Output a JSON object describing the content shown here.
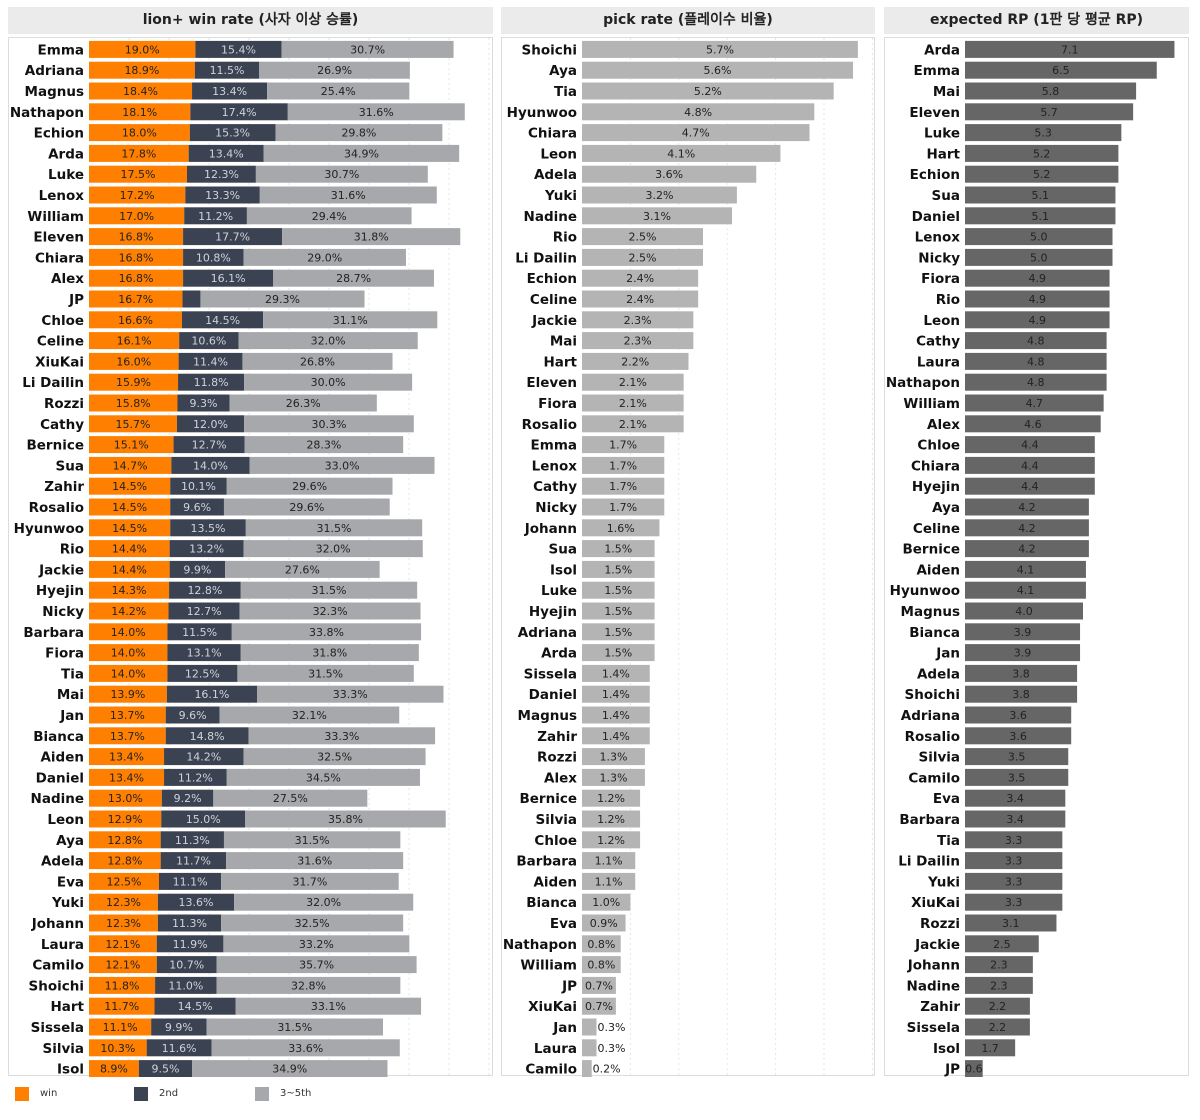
{
  "colors": {
    "win": "#ff8000",
    "second": "#3b4252",
    "third_to_fifth": "#a6a8ab",
    "pick": "#b4b4b4",
    "rp": "#666666",
    "header_bg": "#ebebeb"
  },
  "chart_data": [
    {
      "type": "bar",
      "stacked": true,
      "orientation": "horizontal",
      "title": "lion+ win rate (사자 이상 승률)",
      "categories": [
        "Emma",
        "Adriana",
        "Magnus",
        "Nathapon",
        "Echion",
        "Arda",
        "Luke",
        "Lenox",
        "William",
        "Eleven",
        "Chiara",
        "Alex",
        "JP",
        "Chloe",
        "Celine",
        "XiuKai",
        "Li Dailin",
        "Rozzi",
        "Cathy",
        "Bernice",
        "Sua",
        "Zahir",
        "Rosalio",
        "Hyunwoo",
        "Rio",
        "Jackie",
        "Hyejin",
        "Nicky",
        "Barbara",
        "Fiora",
        "Tia",
        "Mai",
        "Jan",
        "Bianca",
        "Aiden",
        "Daniel",
        "Nadine",
        "Leon",
        "Aya",
        "Adela",
        "Eva",
        "Yuki",
        "Johann",
        "Laura",
        "Camilo",
        "Shoichi",
        "Hart",
        "Sissela",
        "Silvia",
        "Isol"
      ],
      "series": [
        {
          "name": "win",
          "values": [
            19.0,
            18.9,
            18.4,
            18.1,
            18.0,
            17.8,
            17.5,
            17.2,
            17.0,
            16.8,
            16.8,
            16.8,
            16.7,
            16.6,
            16.1,
            16.0,
            15.9,
            15.8,
            15.7,
            15.1,
            14.7,
            14.5,
            14.5,
            14.5,
            14.4,
            14.4,
            14.3,
            14.2,
            14.0,
            14.0,
            14.0,
            13.9,
            13.7,
            13.7,
            13.4,
            13.4,
            13.0,
            12.9,
            12.8,
            12.8,
            12.5,
            12.3,
            12.3,
            12.1,
            12.1,
            11.8,
            11.7,
            11.1,
            10.3,
            8.9
          ]
        },
        {
          "name": "2nd",
          "values": [
            15.4,
            11.5,
            13.4,
            17.4,
            15.3,
            13.4,
            12.3,
            13.3,
            11.2,
            17.7,
            10.8,
            16.1,
            3.2,
            14.5,
            10.6,
            11.4,
            11.8,
            9.3,
            12.0,
            12.7,
            14.0,
            10.1,
            9.6,
            13.5,
            13.2,
            9.9,
            12.8,
            12.7,
            11.5,
            13.1,
            12.5,
            16.1,
            9.6,
            14.8,
            14.2,
            11.2,
            9.2,
            15.0,
            11.3,
            11.7,
            11.1,
            13.6,
            11.3,
            11.9,
            10.7,
            11.0,
            14.5,
            9.9,
            11.6,
            9.5
          ]
        },
        {
          "name": "3~5th",
          "values": [
            30.7,
            26.9,
            25.4,
            31.6,
            29.8,
            34.9,
            30.7,
            31.6,
            29.4,
            31.8,
            29.0,
            28.7,
            29.3,
            31.1,
            32.0,
            26.8,
            30.0,
            26.3,
            30.3,
            28.3,
            33.0,
            29.6,
            29.6,
            31.5,
            32.0,
            27.6,
            31.5,
            32.3,
            33.8,
            31.8,
            31.5,
            33.3,
            32.1,
            33.3,
            32.5,
            34.5,
            27.5,
            35.8,
            31.5,
            31.6,
            31.7,
            32.0,
            32.5,
            33.2,
            35.7,
            32.8,
            33.1,
            31.5,
            33.6,
            34.9
          ]
        }
      ],
      "value_labels": [
        [
          "19.0%",
          "15.4%",
          "30.7%"
        ],
        [
          "18.9%",
          "11.5%",
          "26.9%"
        ],
        [
          "18.4%",
          "13.4%",
          "25.4%"
        ],
        [
          "18.1%",
          "17.4%",
          "31.6%"
        ],
        [
          "18.0%",
          "15.3%",
          "29.8%"
        ],
        [
          "17.8%",
          "13.4%",
          "34.9%"
        ],
        [
          "17.5%",
          "12.3%",
          "30.7%"
        ],
        [
          "17.2%",
          "13.3%",
          "31.6%"
        ],
        [
          "17.0%",
          "11.2%",
          "29.4%"
        ],
        [
          "16.8%",
          "17.7%",
          "31.8%"
        ],
        [
          "16.8%",
          "10.8%",
          "29.0%"
        ],
        [
          "16.8%",
          "16.1%",
          "28.7%"
        ],
        [
          "16.7%",
          "",
          "29.3%"
        ],
        [
          "16.6%",
          "14.5%",
          "31.1%"
        ],
        [
          "16.1%",
          "10.6%",
          "32.0%"
        ],
        [
          "16.0%",
          "11.4%",
          "26.8%"
        ],
        [
          "15.9%",
          "11.8%",
          "30.0%"
        ],
        [
          "15.8%",
          "9.3%",
          "26.3%"
        ],
        [
          "15.7%",
          "12.0%",
          "30.3%"
        ],
        [
          "15.1%",
          "12.7%",
          "28.3%"
        ],
        [
          "14.7%",
          "14.0%",
          "33.0%"
        ],
        [
          "14.5%",
          "10.1%",
          "29.6%"
        ],
        [
          "14.5%",
          "9.6%",
          "29.6%"
        ],
        [
          "14.5%",
          "13.5%",
          "31.5%"
        ],
        [
          "14.4%",
          "13.2%",
          "32.0%"
        ],
        [
          "14.4%",
          "9.9%",
          "27.6%"
        ],
        [
          "14.3%",
          "12.8%",
          "31.5%"
        ],
        [
          "14.2%",
          "12.7%",
          "32.3%"
        ],
        [
          "14.0%",
          "11.5%",
          "33.8%"
        ],
        [
          "14.0%",
          "13.1%",
          "31.8%"
        ],
        [
          "14.0%",
          "12.5%",
          "31.5%"
        ],
        [
          "13.9%",
          "16.1%",
          "33.3%"
        ],
        [
          "13.7%",
          "9.6%",
          "32.1%"
        ],
        [
          "13.7%",
          "14.8%",
          "33.3%"
        ],
        [
          "13.4%",
          "14.2%",
          "32.5%"
        ],
        [
          "13.4%",
          "11.2%",
          "34.5%"
        ],
        [
          "13.0%",
          "9.2%",
          "27.5%"
        ],
        [
          "12.9%",
          "15.0%",
          "35.8%"
        ],
        [
          "12.8%",
          "11.3%",
          "31.5%"
        ],
        [
          "12.8%",
          "11.7%",
          "31.6%"
        ],
        [
          "12.5%",
          "11.1%",
          "31.7%"
        ],
        [
          "12.3%",
          "13.6%",
          "32.0%"
        ],
        [
          "12.3%",
          "11.3%",
          "32.5%"
        ],
        [
          "12.1%",
          "11.9%",
          "33.2%"
        ],
        [
          "12.1%",
          "10.7%",
          "35.7%"
        ],
        [
          "11.8%",
          "11.0%",
          "32.8%"
        ],
        [
          "11.7%",
          "14.5%",
          "33.1%"
        ],
        [
          "11.1%",
          "9.9%",
          "31.5%"
        ],
        [
          "10.3%",
          "11.6%",
          "33.6%"
        ],
        [
          "8.9%",
          "9.5%",
          "34.9%"
        ]
      ],
      "xlim": [
        0,
        75
      ],
      "grid": true
    },
    {
      "type": "bar",
      "orientation": "horizontal",
      "title": "pick rate (플레이수 비율)",
      "categories": [
        "Shoichi",
        "Aya",
        "Tia",
        "Hyunwoo",
        "Chiara",
        "Leon",
        "Adela",
        "Yuki",
        "Nadine",
        "Rio",
        "Li Dailin",
        "Echion",
        "Celine",
        "Jackie",
        "Mai",
        "Hart",
        "Eleven",
        "Fiora",
        "Rosalio",
        "Emma",
        "Lenox",
        "Cathy",
        "Nicky",
        "Johann",
        "Sua",
        "Isol",
        "Luke",
        "Hyejin",
        "Adriana",
        "Arda",
        "Sissela",
        "Daniel",
        "Magnus",
        "Zahir",
        "Rozzi",
        "Alex",
        "Bernice",
        "Silvia",
        "Chloe",
        "Barbara",
        "Aiden",
        "Bianca",
        "Eva",
        "Nathapon",
        "William",
        "JP",
        "XiuKai",
        "Jan",
        "Laura",
        "Camilo"
      ],
      "values": [
        5.7,
        5.6,
        5.2,
        4.8,
        4.7,
        4.1,
        3.6,
        3.2,
        3.1,
        2.5,
        2.5,
        2.4,
        2.4,
        2.3,
        2.3,
        2.2,
        2.1,
        2.1,
        2.1,
        1.7,
        1.7,
        1.7,
        1.7,
        1.6,
        1.5,
        1.5,
        1.5,
        1.5,
        1.5,
        1.5,
        1.4,
        1.4,
        1.4,
        1.4,
        1.3,
        1.3,
        1.2,
        1.2,
        1.2,
        1.1,
        1.1,
        1.0,
        0.9,
        0.8,
        0.8,
        0.7,
        0.7,
        0.3,
        0.3,
        0.2
      ],
      "value_labels": [
        "5.7%",
        "5.6%",
        "5.2%",
        "4.8%",
        "4.7%",
        "4.1%",
        "3.6%",
        "3.2%",
        "3.1%",
        "2.5%",
        "2.5%",
        "2.4%",
        "2.4%",
        "2.3%",
        "2.3%",
        "2.2%",
        "2.1%",
        "2.1%",
        "2.1%",
        "1.7%",
        "1.7%",
        "1.7%",
        "1.7%",
        "1.6%",
        "1.5%",
        "1.5%",
        "1.5%",
        "1.5%",
        "1.5%",
        "1.5%",
        "1.4%",
        "1.4%",
        "1.4%",
        "1.4%",
        "1.3%",
        "1.3%",
        "1.2%",
        "1.2%",
        "1.2%",
        "1.1%",
        "1.1%",
        "1.0%",
        "0.9%",
        "0.8%",
        "0.8%",
        "0.7%",
        "0.7%",
        "0.3%",
        "0.3%",
        "0.2%"
      ],
      "xlim": [
        0,
        6
      ],
      "grid": true
    },
    {
      "type": "bar",
      "orientation": "horizontal",
      "title": "expected RP (1판 당 평균 RP)",
      "categories": [
        "Arda",
        "Emma",
        "Mai",
        "Eleven",
        "Luke",
        "Hart",
        "Echion",
        "Sua",
        "Daniel",
        "Lenox",
        "Nicky",
        "Fiora",
        "Rio",
        "Leon",
        "Cathy",
        "Laura",
        "Nathapon",
        "William",
        "Alex",
        "Chloe",
        "Chiara",
        "Hyejin",
        "Aya",
        "Celine",
        "Bernice",
        "Aiden",
        "Hyunwoo",
        "Magnus",
        "Bianca",
        "Jan",
        "Adela",
        "Shoichi",
        "Adriana",
        "Rosalio",
        "Silvia",
        "Camilo",
        "Eva",
        "Barbara",
        "Tia",
        "Li Dailin",
        "Yuki",
        "XiuKai",
        "Rozzi",
        "Jackie",
        "Johann",
        "Nadine",
        "Zahir",
        "Sissela",
        "Isol",
        "JP"
      ],
      "values": [
        7.1,
        6.5,
        5.8,
        5.7,
        5.3,
        5.2,
        5.2,
        5.1,
        5.1,
        5.0,
        5.0,
        4.9,
        4.9,
        4.9,
        4.8,
        4.8,
        4.8,
        4.7,
        4.6,
        4.4,
        4.4,
        4.4,
        4.2,
        4.2,
        4.2,
        4.1,
        4.1,
        4.0,
        3.9,
        3.9,
        3.8,
        3.8,
        3.6,
        3.6,
        3.5,
        3.5,
        3.4,
        3.4,
        3.3,
        3.3,
        3.3,
        3.3,
        3.1,
        2.5,
        2.3,
        2.3,
        2.2,
        2.2,
        1.7,
        0.6
      ],
      "value_labels": [
        "7.1",
        "6.5",
        "5.8",
        "5.7",
        "5.3",
        "5.2",
        "5.2",
        "5.1",
        "5.1",
        "5.0",
        "5.0",
        "4.9",
        "4.9",
        "4.9",
        "4.8",
        "4.8",
        "4.8",
        "4.7",
        "4.6",
        "4.4",
        "4.4",
        "4.4",
        "4.2",
        "4.2",
        "4.2",
        "4.1",
        "4.1",
        "4.0",
        "3.9",
        "3.9",
        "3.8",
        "3.8",
        "3.6",
        "3.6",
        "3.5",
        "3.5",
        "3.4",
        "3.4",
        "3.3",
        "3.3",
        "3.3",
        "3.3",
        "3.1",
        "2.5",
        "2.3",
        "2.3",
        "2.2",
        "2.2",
        "1.7",
        "0.6"
      ],
      "xlim": [
        0,
        7.3
      ],
      "grid": false
    }
  ],
  "legend": [
    {
      "key": "win",
      "label": "win"
    },
    {
      "key": "second",
      "label": "2nd"
    },
    {
      "key": "third_to_fifth",
      "label": "3~5th"
    }
  ]
}
